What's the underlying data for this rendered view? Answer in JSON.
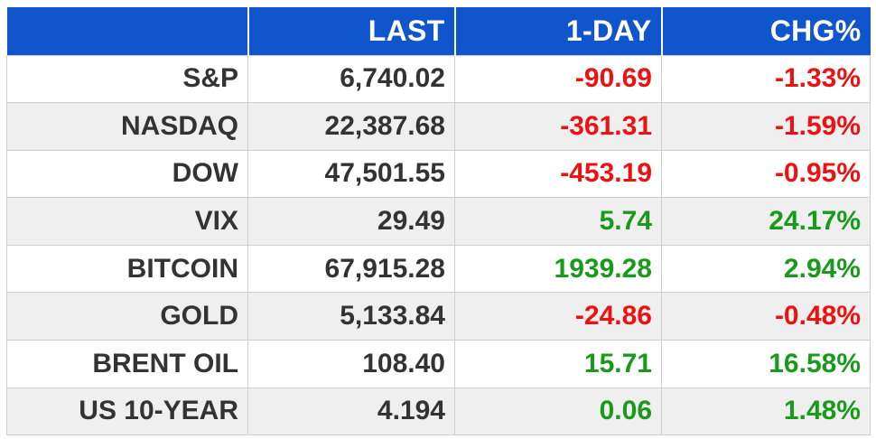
{
  "header": [
    "",
    "LAST",
    "1-DAY",
    "CHG%"
  ],
  "colors": {
    "header_bg": "#1155cc",
    "negative": "#ee1111",
    "positive": "#1a9a1a",
    "text": "#333333",
    "row_alt": "#efefef"
  },
  "rows": [
    {
      "name": "S&P",
      "last": "6,740.02",
      "day": "-90.69",
      "chg": "-1.33%",
      "dir": "neg"
    },
    {
      "name": "NASDAQ",
      "last": "22,387.68",
      "day": "-361.31",
      "chg": "-1.59%",
      "dir": "neg"
    },
    {
      "name": "DOW",
      "last": "47,501.55",
      "day": "-453.19",
      "chg": "-0.95%",
      "dir": "neg"
    },
    {
      "name": "VIX",
      "last": "29.49",
      "day": "5.74",
      "chg": "24.17%",
      "dir": "pos"
    },
    {
      "name": "BITCOIN",
      "last": "67,915.28",
      "day": "1939.28",
      "chg": "2.94%",
      "dir": "pos"
    },
    {
      "name": "GOLD",
      "last": "5,133.84",
      "day": "-24.86",
      "chg": "-0.48%",
      "dir": "neg"
    },
    {
      "name": "BRENT OIL",
      "last": "108.40",
      "day": "15.71",
      "chg": "16.58%",
      "dir": "pos"
    },
    {
      "name": "US 10-YEAR",
      "last": "4.194",
      "day": "0.06",
      "chg": "1.48%",
      "dir": "pos"
    }
  ]
}
